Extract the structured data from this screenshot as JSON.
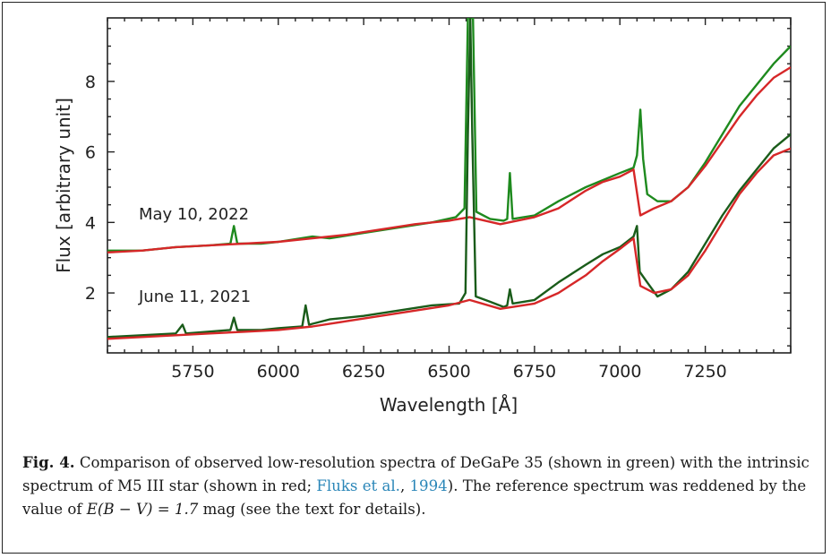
{
  "chart_data": {
    "type": "line",
    "xlabel": "Wavelength [Å]",
    "ylabel": "Flux [arbitrary unit]",
    "xlim": [
      5500,
      7500
    ],
    "ylim": [
      0.3,
      9.8
    ],
    "xticks": [
      "5750",
      "6000",
      "6250",
      "6500",
      "6750",
      "7000",
      "7250"
    ],
    "yticks": [
      "2",
      "4",
      "6",
      "8"
    ],
    "annotations": [
      "May 10, 2022",
      "June 11, 2021"
    ],
    "series": [
      {
        "color": "#1e8a1e",
        "points": [
          [
            5500,
            3.2
          ],
          [
            5600,
            3.2
          ],
          [
            5700,
            3.3
          ],
          [
            5800,
            3.35
          ],
          [
            5860,
            3.4
          ],
          [
            5870,
            3.9
          ],
          [
            5880,
            3.4
          ],
          [
            5950,
            3.4
          ],
          [
            6000,
            3.45
          ],
          [
            6100,
            3.6
          ],
          [
            6150,
            3.55
          ],
          [
            6250,
            3.7
          ],
          [
            6350,
            3.85
          ],
          [
            6450,
            4.0
          ],
          [
            6520,
            4.15
          ],
          [
            6545,
            4.4
          ],
          [
            6555,
            9.8
          ],
          [
            6562,
            9.8
          ],
          [
            6570,
            9.8
          ],
          [
            6580,
            4.3
          ],
          [
            6620,
            4.1
          ],
          [
            6660,
            4.05
          ],
          [
            6670,
            4.1
          ],
          [
            6678,
            5.4
          ],
          [
            6686,
            4.1
          ],
          [
            6750,
            4.2
          ],
          [
            6820,
            4.6
          ],
          [
            6900,
            5.0
          ],
          [
            6950,
            5.2
          ],
          [
            7000,
            5.4
          ],
          [
            7040,
            5.55
          ],
          [
            7050,
            5.9
          ],
          [
            7060,
            7.2
          ],
          [
            7068,
            5.8
          ],
          [
            7080,
            4.8
          ],
          [
            7110,
            4.6
          ],
          [
            7150,
            4.6
          ],
          [
            7200,
            5.0
          ],
          [
            7250,
            5.7
          ],
          [
            7300,
            6.5
          ],
          [
            7350,
            7.3
          ],
          [
            7400,
            7.9
          ],
          [
            7450,
            8.5
          ],
          [
            7500,
            9.0
          ]
        ]
      },
      {
        "color": "#d62728",
        "points": [
          [
            5500,
            3.15
          ],
          [
            5600,
            3.2
          ],
          [
            5700,
            3.3
          ],
          [
            5800,
            3.35
          ],
          [
            5900,
            3.4
          ],
          [
            6000,
            3.45
          ],
          [
            6100,
            3.55
          ],
          [
            6200,
            3.65
          ],
          [
            6300,
            3.8
          ],
          [
            6400,
            3.95
          ],
          [
            6500,
            4.05
          ],
          [
            6560,
            4.15
          ],
          [
            6650,
            3.95
          ],
          [
            6750,
            4.15
          ],
          [
            6820,
            4.4
          ],
          [
            6900,
            4.9
          ],
          [
            6950,
            5.15
          ],
          [
            7000,
            5.3
          ],
          [
            7040,
            5.5
          ],
          [
            7060,
            4.2
          ],
          [
            7100,
            4.4
          ],
          [
            7150,
            4.6
          ],
          [
            7200,
            5.0
          ],
          [
            7250,
            5.6
          ],
          [
            7300,
            6.3
          ],
          [
            7350,
            7.0
          ],
          [
            7400,
            7.6
          ],
          [
            7450,
            8.1
          ],
          [
            7500,
            8.4
          ]
        ]
      },
      {
        "color": "#1a5c1a",
        "points": [
          [
            5500,
            0.75
          ],
          [
            5600,
            0.8
          ],
          [
            5700,
            0.85
          ],
          [
            5720,
            1.1
          ],
          [
            5730,
            0.85
          ],
          [
            5860,
            0.95
          ],
          [
            5870,
            1.3
          ],
          [
            5880,
            0.95
          ],
          [
            5950,
            0.95
          ],
          [
            6000,
            1.0
          ],
          [
            6070,
            1.05
          ],
          [
            6080,
            1.65
          ],
          [
            6090,
            1.1
          ],
          [
            6150,
            1.25
          ],
          [
            6250,
            1.35
          ],
          [
            6350,
            1.5
          ],
          [
            6450,
            1.65
          ],
          [
            6530,
            1.7
          ],
          [
            6548,
            2.0
          ],
          [
            6555,
            6.5
          ],
          [
            6562,
            9.8
          ],
          [
            6568,
            6.5
          ],
          [
            6578,
            1.9
          ],
          [
            6620,
            1.75
          ],
          [
            6660,
            1.6
          ],
          [
            6670,
            1.65
          ],
          [
            6678,
            2.1
          ],
          [
            6686,
            1.7
          ],
          [
            6750,
            1.8
          ],
          [
            6820,
            2.3
          ],
          [
            6900,
            2.8
          ],
          [
            6950,
            3.1
          ],
          [
            7000,
            3.3
          ],
          [
            7040,
            3.6
          ],
          [
            7050,
            3.9
          ],
          [
            7058,
            2.6
          ],
          [
            7080,
            2.3
          ],
          [
            7110,
            1.9
          ],
          [
            7150,
            2.1
          ],
          [
            7200,
            2.6
          ],
          [
            7250,
            3.4
          ],
          [
            7300,
            4.2
          ],
          [
            7350,
            4.9
          ],
          [
            7400,
            5.5
          ],
          [
            7450,
            6.1
          ],
          [
            7500,
            6.5
          ]
        ]
      },
      {
        "color": "#d62728",
        "points": [
          [
            5500,
            0.7
          ],
          [
            5600,
            0.75
          ],
          [
            5700,
            0.8
          ],
          [
            5800,
            0.85
          ],
          [
            5900,
            0.9
          ],
          [
            6000,
            0.95
          ],
          [
            6100,
            1.05
          ],
          [
            6200,
            1.2
          ],
          [
            6300,
            1.35
          ],
          [
            6400,
            1.5
          ],
          [
            6500,
            1.65
          ],
          [
            6560,
            1.8
          ],
          [
            6650,
            1.55
          ],
          [
            6750,
            1.7
          ],
          [
            6820,
            2.0
          ],
          [
            6900,
            2.5
          ],
          [
            6950,
            2.9
          ],
          [
            7000,
            3.25
          ],
          [
            7040,
            3.55
          ],
          [
            7060,
            2.2
          ],
          [
            7100,
            2.0
          ],
          [
            7150,
            2.1
          ],
          [
            7200,
            2.5
          ],
          [
            7250,
            3.2
          ],
          [
            7300,
            4.0
          ],
          [
            7350,
            4.8
          ],
          [
            7400,
            5.4
          ],
          [
            7450,
            5.9
          ],
          [
            7500,
            6.1
          ]
        ]
      }
    ]
  },
  "caption": {
    "label": "Fig. 4.",
    "text1": " Comparison of observed low-resolution spectra of DeGaPe 35 (shown in green) with the intrinsic spectrum of M5 III star (shown in red; ",
    "cite_name": "Fluks et al.",
    "cite_sep": ", ",
    "cite_year": "1994",
    "text2": "). The reference spectrum was reddened by the value of ",
    "math": "E(B − V) = 1.7",
    "text3": " mag (see the text for details)."
  }
}
